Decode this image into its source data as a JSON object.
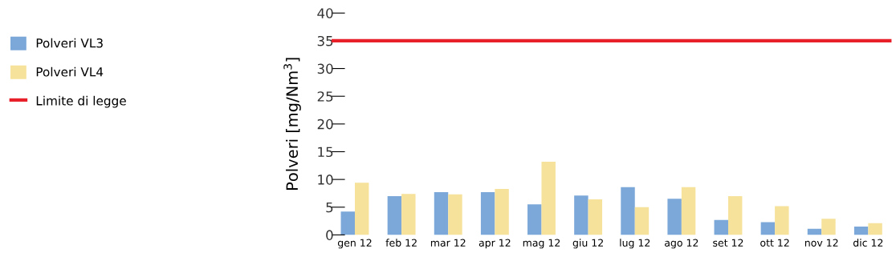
{
  "chart_data": {
    "type": "bar",
    "ylabel": "Polveri [mg/Nm$^{3}$]",
    "categories": [
      "gen 12",
      "feb 12",
      "mar 12",
      "apr 12",
      "mag 12",
      "giu 12",
      "lug 12",
      "ago 12",
      "set 12",
      "ott 12",
      "nov 12",
      "dic 12"
    ],
    "series": [
      {
        "name": "Polveri VL3",
        "color": "#7ba7d9",
        "values": [
          4.2,
          7.0,
          7.7,
          7.7,
          5.5,
          7.1,
          8.6,
          6.5,
          2.7,
          2.3,
          1.1,
          1.5
        ]
      },
      {
        "name": "Polveri VL4",
        "color": "#f6e29a",
        "values": [
          9.4,
          7.4,
          7.3,
          8.3,
          13.2,
          6.4,
          5.0,
          8.6,
          7.0,
          5.2,
          2.9,
          2.1
        ]
      }
    ],
    "ref_lines": [
      {
        "axis": "y",
        "value": 35,
        "label": "Limite di legge",
        "color": "#e8202a"
      }
    ],
    "ylim": [
      0,
      40
    ],
    "yticks": [
      0,
      5,
      10,
      15,
      20,
      25,
      30,
      35,
      40
    ],
    "grid": false,
    "legend": "left"
  }
}
